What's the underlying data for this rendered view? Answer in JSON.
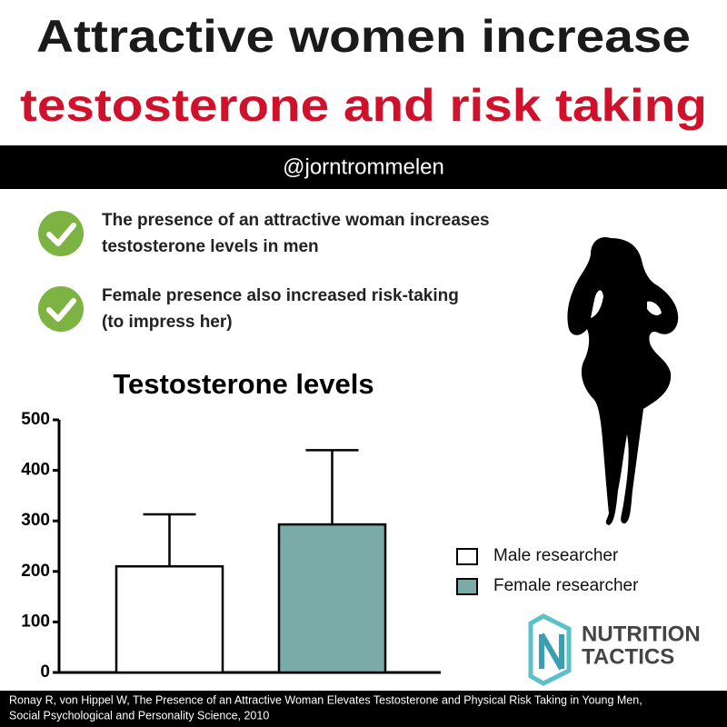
{
  "header": {
    "title_line1": "Attractive women increase",
    "title_line2": "testosterone and risk taking",
    "handle": "@jorntrommelen"
  },
  "bullets": [
    {
      "lines": [
        "The presence of an attractive woman increases",
        "testosterone levels in men"
      ]
    },
    {
      "lines": [
        "Female presence also increased risk-taking",
        "(to impress her)"
      ]
    }
  ],
  "chart_data": {
    "type": "bar",
    "title": "Testosterone levels",
    "series": [
      {
        "name": "Male researcher",
        "color": "#ffffff",
        "values": [
          210
        ],
        "errors": [
          103
        ]
      },
      {
        "name": "Female researcher",
        "color": "#7aaba8",
        "values": [
          293
        ],
        "errors": [
          147
        ]
      }
    ],
    "ylim": [
      0,
      500
    ],
    "yticks": [
      0,
      100,
      200,
      300,
      400,
      500
    ],
    "grid": false,
    "legend": "right"
  },
  "logo": {
    "line1": "NUTRITION",
    "line2": "TACTICS"
  },
  "citation": {
    "lines": [
      "Ronay R, von Hippel W, The Presence of an Attractive Woman Elevates Testosterone and Physical Risk Taking in Young Men,",
      "Social Psychological and Personality Science, 2010"
    ]
  }
}
